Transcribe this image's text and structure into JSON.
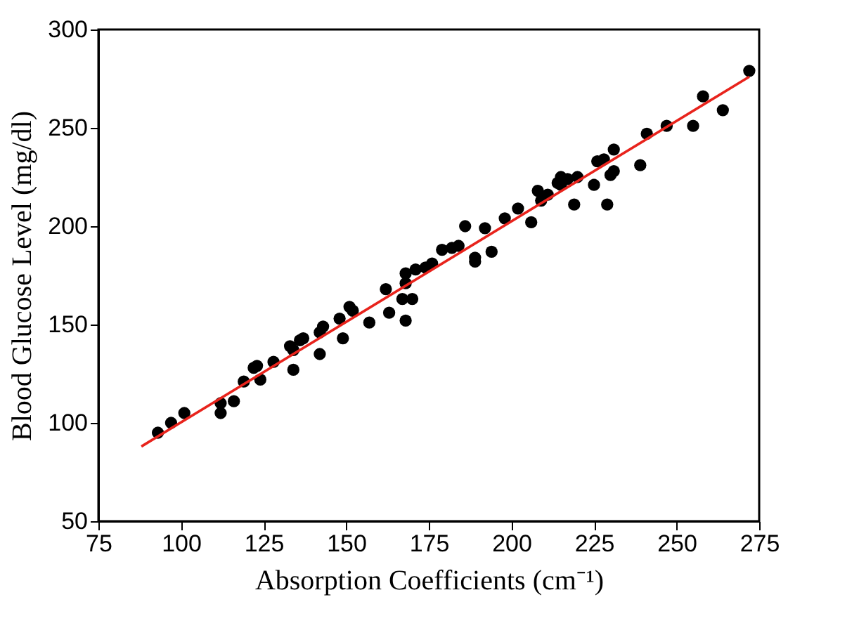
{
  "chart_data": {
    "type": "scatter",
    "xlabel": "Absorption Coefficients (cm⁻¹)",
    "ylabel": "Blood Glucose Level (mg/dl)",
    "xlim": [
      75,
      275
    ],
    "xticks": [
      75,
      100,
      125,
      150,
      175,
      200,
      225,
      250,
      275
    ],
    "ylim": [
      50,
      300
    ],
    "yticks": [
      50,
      100,
      150,
      200,
      250,
      300
    ],
    "grid": false,
    "series": [
      {
        "color": "#000000",
        "marker": "circle",
        "x": [
          93,
          97,
          101,
          112,
          112,
          116,
          119,
          122,
          123,
          124,
          128,
          133,
          134,
          134,
          136,
          137,
          142,
          142,
          143,
          148,
          149,
          151,
          152,
          157,
          162,
          163,
          167,
          168,
          168,
          168,
          170,
          171,
          174,
          176,
          179,
          182,
          184,
          186,
          189,
          189,
          192,
          194,
          198,
          202,
          206,
          208,
          209,
          211,
          214,
          215,
          215,
          217,
          220,
          219,
          225,
          226,
          228,
          229,
          230,
          231,
          231,
          239,
          241,
          247,
          255,
          258,
          264,
          272
        ],
        "values": [
          95,
          100,
          105,
          105,
          110,
          111,
          121,
          128,
          129,
          122,
          131,
          139,
          127,
          137,
          142,
          143,
          135,
          146,
          149,
          153,
          143,
          159,
          157,
          151,
          168,
          156,
          163,
          152,
          171,
          176,
          163,
          178,
          179,
          181,
          188,
          189,
          190,
          200,
          184,
          182,
          199,
          187,
          204,
          209,
          202,
          218,
          213,
          216,
          222,
          225,
          221,
          224,
          225,
          211,
          221,
          233,
          234,
          211,
          226,
          239,
          228,
          231,
          247,
          251,
          251,
          266,
          259,
          279
        ]
      },
      {
        "type": "line",
        "color": "#e8231c",
        "marker": "none",
        "line_style": "solid",
        "x": [
          88,
          272
        ],
        "values": [
          88,
          276
        ]
      }
    ]
  }
}
